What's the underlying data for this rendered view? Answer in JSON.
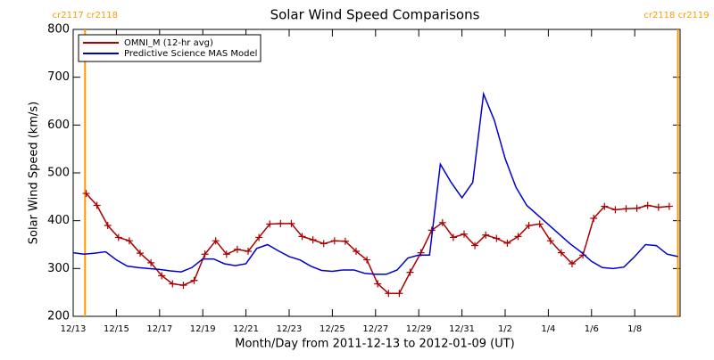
{
  "chart_data": {
    "type": "line",
    "title": "Solar Wind Speed Comparisons",
    "xlabel": "Month/Day from 2011-12-13 to 2012-01-09 (UT)",
    "ylabel": "Solar Wind Speed (km/s)",
    "xlim": [
      0,
      28.1
    ],
    "ylim": [
      200,
      800
    ],
    "yticks": [
      200,
      300,
      400,
      500,
      600,
      700,
      800
    ],
    "xticks": [
      {
        "value": 0,
        "label": "12/13"
      },
      {
        "value": 2,
        "label": "12/15"
      },
      {
        "value": 4,
        "label": "12/17"
      },
      {
        "value": 6,
        "label": "12/19"
      },
      {
        "value": 8,
        "label": "12/21"
      },
      {
        "value": 10,
        "label": "12/23"
      },
      {
        "value": 12,
        "label": "12/25"
      },
      {
        "value": 14,
        "label": "12/27"
      },
      {
        "value": 16,
        "label": "12/29"
      },
      {
        "value": 18,
        "label": "12/31"
      },
      {
        "value": 20,
        "label": "1/2"
      },
      {
        "value": 22,
        "label": "1/4"
      },
      {
        "value": 24,
        "label": "1/6"
      },
      {
        "value": 26,
        "label": "1/8"
      }
    ],
    "legend": "upper left",
    "carrington": [
      {
        "x": 0.55,
        "label": "cr2117 cr2118",
        "color": "#ff9900"
      },
      {
        "x": 28.0,
        "label": "cr2118 cr2119",
        "color": "#ff9900"
      }
    ],
    "series": [
      {
        "name": "OMNI_M (12-hr avg)",
        "color": "#aa0000",
        "markers": true,
        "x": [
          0.6,
          1.1,
          1.6,
          2.1,
          2.6,
          3.1,
          3.6,
          4.1,
          4.6,
          5.1,
          5.6,
          6.1,
          6.6,
          7.1,
          7.6,
          8.1,
          8.6,
          9.1,
          9.6,
          10.1,
          10.6,
          11.1,
          11.6,
          12.1,
          12.6,
          13.1,
          13.6,
          14.1,
          14.6,
          15.1,
          15.6,
          16.1,
          16.6,
          17.1,
          17.6,
          18.1,
          18.6,
          19.1,
          19.6,
          20.1,
          20.6,
          21.1,
          21.6,
          22.1,
          22.6,
          23.1,
          23.6,
          24.1,
          24.6,
          25.1,
          25.6,
          26.1,
          26.6,
          27.1,
          27.6
        ],
        "values": [
          457,
          432,
          390,
          365,
          358,
          332,
          312,
          285,
          268,
          265,
          275,
          330,
          358,
          330,
          340,
          336,
          365,
          393,
          394,
          394,
          367,
          360,
          352,
          358,
          357,
          336,
          318,
          268,
          248,
          248,
          292,
          333,
          380,
          396,
          365,
          372,
          348,
          370,
          363,
          353,
          367,
          390,
          393,
          358,
          333,
          310,
          328,
          405,
          430,
          423,
          425,
          426,
          432,
          428,
          430
        ]
      },
      {
        "name": "Predictive Science MAS Model",
        "color": "#0000cc",
        "markers": false,
        "x": [
          0,
          0.5,
          1,
          1.5,
          2,
          2.5,
          3,
          3.5,
          4,
          4.5,
          5,
          5.5,
          6,
          6.5,
          7,
          7.5,
          8,
          8.5,
          9,
          9.5,
          10,
          10.5,
          11,
          11.5,
          12,
          12.5,
          13,
          13.5,
          14,
          14.5,
          15,
          15.5,
          16,
          16.5,
          17,
          17.5,
          18,
          18.5,
          19,
          19.5,
          20,
          20.5,
          21,
          21.5,
          22,
          22.5,
          23,
          23.5,
          24,
          24.5,
          25,
          25.5,
          26,
          26.5,
          27,
          27.5,
          28
        ],
        "values": [
          333,
          330,
          332,
          335,
          318,
          305,
          302,
          300,
          298,
          295,
          293,
          302,
          320,
          320,
          310,
          306,
          310,
          342,
          350,
          337,
          325,
          318,
          305,
          296,
          294,
          297,
          297,
          290,
          288,
          288,
          297,
          322,
          328,
          328,
          518,
          480,
          448,
          480,
          665,
          610,
          530,
          470,
          432,
          412,
          392,
          372,
          352,
          335,
          315,
          302,
          300,
          303,
          325,
          350,
          348,
          330,
          325
        ]
      }
    ]
  }
}
